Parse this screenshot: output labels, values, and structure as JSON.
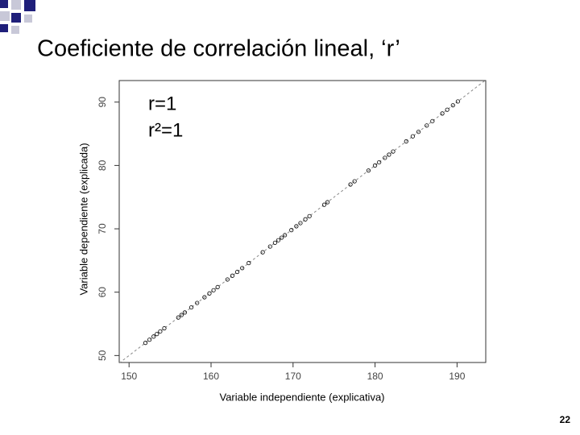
{
  "slide": {
    "title": "Coeficiente de correlación lineal, ‘r’",
    "page_number": "22"
  },
  "chart_data": {
    "type": "scatter",
    "x_label": "Variable independiente (explicativa)",
    "y_label": "Variable dependiente (explicada)",
    "annotations": [
      "r=1",
      "r²=1"
    ],
    "xlim": [
      148.8,
      193.5
    ],
    "ylim": [
      48.9,
      93.4
    ],
    "xticks": [
      150,
      160,
      170,
      180,
      190
    ],
    "yticks": [
      50,
      60,
      70,
      80,
      90
    ],
    "color": "#000000",
    "fit_line": {
      "x": [
        148.8,
        193.5
      ],
      "y": [
        48.8,
        93.5
      ]
    },
    "x": [
      152.0,
      152.5,
      153.0,
      153.4,
      153.8,
      154.3,
      156.0,
      156.4,
      156.8,
      157.6,
      158.3,
      159.2,
      159.8,
      160.3,
      160.8,
      162.0,
      162.6,
      163.2,
      163.8,
      164.6,
      166.3,
      167.2,
      167.8,
      168.2,
      168.6,
      169.0,
      169.8,
      170.4,
      170.9,
      171.5,
      172.0,
      173.8,
      174.2,
      177.0,
      177.5,
      179.2,
      180.0,
      180.5,
      181.2,
      181.7,
      182.2,
      183.8,
      184.6,
      185.3,
      186.3,
      187.0,
      188.2,
      188.8,
      189.5,
      190.1
    ],
    "y": [
      52.0,
      52.5,
      53.0,
      53.4,
      53.8,
      54.3,
      56.0,
      56.4,
      56.8,
      57.6,
      58.3,
      59.2,
      59.8,
      60.3,
      60.8,
      62.0,
      62.6,
      63.2,
      63.8,
      64.6,
      66.3,
      67.2,
      67.8,
      68.2,
      68.6,
      69.0,
      69.8,
      70.4,
      70.9,
      71.5,
      72.0,
      73.8,
      74.2,
      77.0,
      77.5,
      79.2,
      80.0,
      80.5,
      81.2,
      81.7,
      82.2,
      83.8,
      84.6,
      85.3,
      86.3,
      87.0,
      88.2,
      88.8,
      89.5,
      90.1
    ]
  }
}
